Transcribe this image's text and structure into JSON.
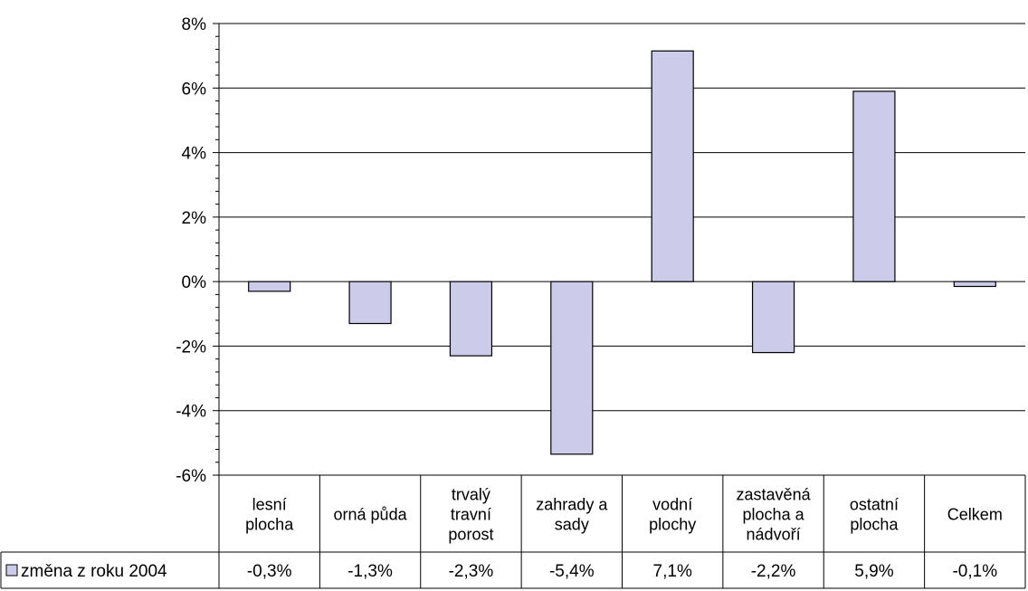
{
  "chart_data": {
    "type": "bar",
    "categories": [
      [
        "lesní",
        "plocha"
      ],
      [
        "orná půda"
      ],
      [
        "trvalý",
        "travní",
        "porost"
      ],
      [
        "zahrady a",
        "sady"
      ],
      [
        "vodní",
        "plochy"
      ],
      [
        "zastavěná",
        "plocha a",
        "nádvoří"
      ],
      [
        "ostatní",
        "plocha"
      ],
      [
        "Celkem"
      ]
    ],
    "series": [
      {
        "name": "změna z roku 2004",
        "values": [
          -0.3,
          -1.3,
          -2.3,
          -5.35,
          7.15,
          -2.2,
          5.9,
          -0.15
        ],
        "value_labels": [
          "-0,3%",
          "-1,3%",
          "-2,3%",
          "-5,4%",
          "7,1%",
          "-2,2%",
          "5,9%",
          "-0,1%"
        ],
        "color": "#ccccea"
      }
    ],
    "ylim": [
      -6,
      8
    ],
    "yticks": [
      8,
      6,
      4,
      2,
      0,
      -2,
      -4,
      -6
    ],
    "ytick_labels": [
      "8%",
      "6%",
      "4%",
      "2%",
      "0%",
      "-2%",
      "-4%",
      "-6%"
    ],
    "grid": true,
    "legend": "data-table"
  }
}
